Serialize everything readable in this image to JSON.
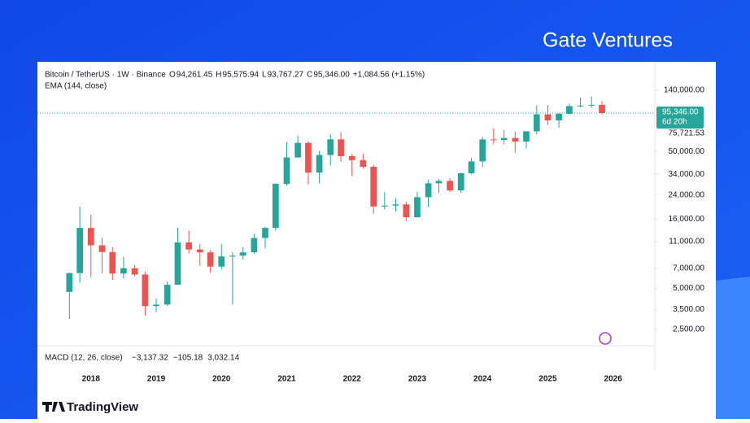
{
  "brand": "Gate Ventures",
  "footer": {
    "logo": "TradingView"
  },
  "chart_data": {
    "type": "candlestick",
    "header": {
      "symbol": "Bitcoin / TetherUS · 1W · Binance",
      "open": {
        "key": "O",
        "label": "94,261.45"
      },
      "high": {
        "key": "H",
        "label": "95,575.94"
      },
      "low": {
        "key": "L",
        "label": "93,767.27"
      },
      "close": {
        "key": "C",
        "label": "95,346.00"
      },
      "change": "+1,084.56 (+1.15%)",
      "indicator": "EMA (144, close)"
    },
    "macd": {
      "title": "MACD (12, 26, close)",
      "series": [
        {
          "label": "−3,137.32",
          "color": "#f23645"
        },
        {
          "label": "−105.18",
          "color": "#2962ff"
        },
        {
          "label": "3,032.14",
          "color": "#ff6d00"
        }
      ]
    },
    "last_price": {
      "value": 95346,
      "label": "95,346.00",
      "countdown": "6d 20h"
    },
    "ema_value": {
      "value": 75721.53,
      "label": "75,721.53"
    },
    "up_color": "#26a69a",
    "down_color": "#ef5350",
    "log_scale": true,
    "xlim": [
      2017.18,
      2026.64
    ],
    "xticks": [
      2018,
      2019,
      2020,
      2021,
      2022,
      2023,
      2024,
      2025,
      2026
    ],
    "ylim": [
      1900,
      214000
    ],
    "yticks": [
      {
        "value": 140000,
        "label": "140,000.00"
      },
      {
        "value": 50000,
        "label": "50,000.00"
      },
      {
        "value": 34000,
        "label": "34,000.00"
      },
      {
        "value": 24000,
        "label": "24,000.00"
      },
      {
        "value": 16000,
        "label": "16,000.00"
      },
      {
        "value": 11000,
        "label": "11,000.00"
      },
      {
        "value": 7000,
        "label": "7,000.00"
      },
      {
        "value": 5000,
        "label": "5,000.00"
      },
      {
        "value": 3500,
        "label": "3,500.00"
      },
      {
        "value": 2500,
        "label": "2,500.00"
      }
    ],
    "x": [
      2017.67,
      2017.83,
      2018.0,
      2018.17,
      2018.33,
      2018.5,
      2018.67,
      2018.83,
      2019.0,
      2019.17,
      2019.33,
      2019.5,
      2019.67,
      2019.83,
      2020.0,
      2020.17,
      2020.33,
      2020.5,
      2020.67,
      2020.83,
      2021.0,
      2021.17,
      2021.33,
      2021.5,
      2021.67,
      2021.83,
      2022.0,
      2022.17,
      2022.33,
      2022.5,
      2022.67,
      2022.83,
      2023.0,
      2023.17,
      2023.33,
      2023.5,
      2023.67,
      2023.83,
      2024.0,
      2024.17,
      2024.33,
      2024.5,
      2024.67,
      2024.83,
      2025.0,
      2025.17,
      2025.33,
      2025.5,
      2025.67,
      2025.83
    ],
    "open": [
      4700,
      6450,
      13800,
      10300,
      9200,
      6400,
      7000,
      6300,
      3700,
      3800,
      5300,
      10800,
      9600,
      9150,
      7200,
      8550,
      8650,
      9150,
      11650,
      13800,
      29000,
      45200,
      57800,
      35000,
      47100,
      61300,
      46200,
      43200,
      38600,
      19800,
      20100,
      20500,
      16500,
      23150,
      29250,
      30450,
      25950,
      34650,
      42300,
      61200,
      60600,
      62700,
      59000,
      70200,
      93400,
      84300,
      94200,
      107200,
      108300,
      109600
    ],
    "high": [
      6500,
      19700,
      17200,
      11700,
      10000,
      8500,
      7400,
      6600,
      4200,
      5600,
      13900,
      13200,
      10500,
      9500,
      10500,
      9200,
      10000,
      12500,
      14100,
      29300,
      58400,
      64900,
      59500,
      50500,
      67000,
      69000,
      48000,
      48200,
      40000,
      25200,
      22800,
      21500,
      25250,
      31000,
      31400,
      31800,
      35000,
      44700,
      64000,
      73800,
      72000,
      70000,
      69500,
      108300,
      109300,
      95700,
      112000,
      123200,
      126200,
      116400
    ],
    "low": [
      2980,
      5500,
      6000,
      6450,
      5750,
      5900,
      6100,
      3150,
      3350,
      3700,
      5300,
      9000,
      7300,
      6500,
      6850,
      3800,
      8100,
      8900,
      9800,
      13200,
      28100,
      45000,
      28800,
      29300,
      39600,
      42000,
      33000,
      37500,
      17600,
      18800,
      18150,
      15500,
      16500,
      19550,
      24800,
      25200,
      24900,
      34100,
      38500,
      56500,
      56500,
      49000,
      52500,
      66800,
      78200,
      74400,
      93300,
      105200,
      104500,
      93767
    ],
    "close": [
      6450,
      13800,
      10300,
      9200,
      6400,
      7000,
      6300,
      3700,
      3800,
      5300,
      10800,
      9600,
      9150,
      7200,
      8550,
      8650,
      9150,
      11650,
      13800,
      29000,
      45200,
      57800,
      35000,
      47100,
      61300,
      46200,
      43200,
      38600,
      19800,
      20100,
      20500,
      16500,
      23150,
      29250,
      30450,
      25950,
      34650,
      42300,
      61200,
      60600,
      62700,
      59000,
      70200,
      93400,
      84300,
      94200,
      107200,
      108300,
      109600,
      95346
    ]
  }
}
